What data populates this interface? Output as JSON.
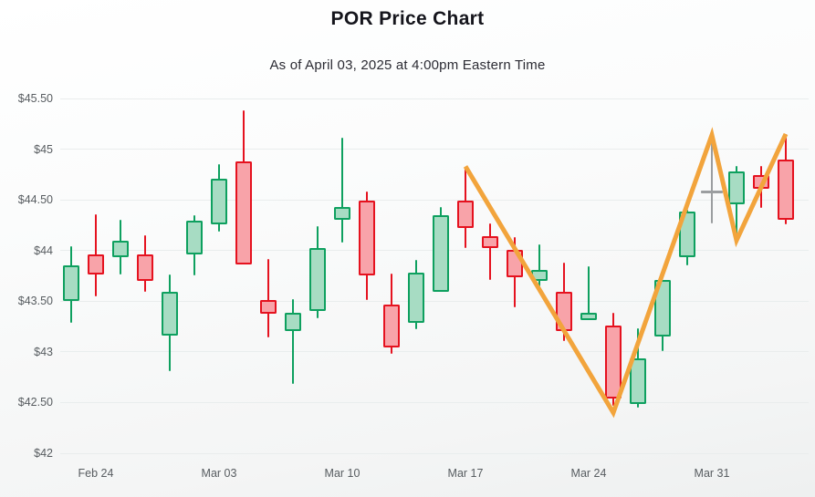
{
  "chart_data": {
    "type": "candlestick",
    "title": "POR Price Chart",
    "subtitle": "As of April 03, 2025 at 4:00pm Eastern Time",
    "legend": false,
    "grid": true,
    "y_axis": {
      "range": [
        42,
        45.5
      ],
      "ticks": [
        {
          "label": "$45.50",
          "price": 45.5
        },
        {
          "label": "$45",
          "price": 45.0
        },
        {
          "label": "$44.50",
          "price": 44.5
        },
        {
          "label": "$44",
          "price": 44.0
        },
        {
          "label": "$43.50",
          "price": 43.5
        },
        {
          "label": "$43",
          "price": 43.0
        },
        {
          "label": "$42.50",
          "price": 42.5
        },
        {
          "label": "$42",
          "price": 42.0
        }
      ]
    },
    "x_axis": {
      "ticks": [
        {
          "label": "Feb 24",
          "candle_index": 1
        },
        {
          "label": "Mar 03",
          "candle_index": 6
        },
        {
          "label": "Mar 10",
          "candle_index": 11
        },
        {
          "label": "Mar 17",
          "candle_index": 16
        },
        {
          "label": "Mar 24",
          "candle_index": 21
        },
        {
          "label": "Mar 31",
          "candle_index": 26
        }
      ]
    },
    "candles": [
      {
        "o": 43.5,
        "h": 44.04,
        "l": 43.29,
        "c": 43.85,
        "dir": "up"
      },
      {
        "o": 43.96,
        "h": 44.36,
        "l": 43.55,
        "c": 43.76,
        "dir": "down"
      },
      {
        "o": 43.93,
        "h": 44.3,
        "l": 43.76,
        "c": 44.1,
        "dir": "up"
      },
      {
        "o": 43.96,
        "h": 44.15,
        "l": 43.59,
        "c": 43.7,
        "dir": "down"
      },
      {
        "o": 43.16,
        "h": 43.76,
        "l": 42.81,
        "c": 43.59,
        "dir": "up"
      },
      {
        "o": 43.96,
        "h": 44.35,
        "l": 43.75,
        "c": 44.29,
        "dir": "up"
      },
      {
        "o": 44.26,
        "h": 44.85,
        "l": 44.19,
        "c": 44.71,
        "dir": "up"
      },
      {
        "o": 44.88,
        "h": 45.38,
        "l": 43.86,
        "c": 43.86,
        "dir": "down"
      },
      {
        "o": 43.51,
        "h": 43.92,
        "l": 43.14,
        "c": 43.38,
        "dir": "down"
      },
      {
        "o": 43.21,
        "h": 43.52,
        "l": 42.68,
        "c": 43.39,
        "dir": "up"
      },
      {
        "o": 43.4,
        "h": 44.24,
        "l": 43.33,
        "c": 44.02,
        "dir": "up"
      },
      {
        "o": 44.3,
        "h": 45.11,
        "l": 44.08,
        "c": 44.43,
        "dir": "up"
      },
      {
        "o": 44.49,
        "h": 44.58,
        "l": 43.51,
        "c": 43.75,
        "dir": "down"
      },
      {
        "o": 43.47,
        "h": 43.77,
        "l": 42.98,
        "c": 43.04,
        "dir": "down"
      },
      {
        "o": 43.29,
        "h": 43.91,
        "l": 43.22,
        "c": 43.78,
        "dir": "up"
      },
      {
        "o": 43.59,
        "h": 44.43,
        "l": 43.59,
        "c": 44.35,
        "dir": "up"
      },
      {
        "o": 44.49,
        "h": 44.82,
        "l": 44.02,
        "c": 44.22,
        "dir": "down"
      },
      {
        "o": 44.14,
        "h": 44.27,
        "l": 43.71,
        "c": 44.02,
        "dir": "down"
      },
      {
        "o": 44.01,
        "h": 44.13,
        "l": 43.44,
        "c": 43.74,
        "dir": "down"
      },
      {
        "o": 43.7,
        "h": 44.06,
        "l": 43.65,
        "c": 43.81,
        "dir": "up"
      },
      {
        "o": 43.59,
        "h": 43.88,
        "l": 43.11,
        "c": 43.21,
        "dir": "down"
      },
      {
        "o": 43.31,
        "h": 43.84,
        "l": 43.31,
        "c": 43.39,
        "dir": "up"
      },
      {
        "o": 43.26,
        "h": 43.39,
        "l": 42.47,
        "c": 42.54,
        "dir": "down"
      },
      {
        "o": 42.49,
        "h": 43.23,
        "l": 42.45,
        "c": 42.94,
        "dir": "up"
      },
      {
        "o": 43.15,
        "h": 43.71,
        "l": 43.01,
        "c": 43.71,
        "dir": "up"
      },
      {
        "o": 43.93,
        "h": 44.4,
        "l": 43.85,
        "c": 44.38,
        "dir": "up"
      },
      {
        "o": 44.58,
        "h": 45.09,
        "l": 44.27,
        "c": 44.58,
        "dir": "doji"
      },
      {
        "o": 44.46,
        "h": 44.83,
        "l": 44.17,
        "c": 44.78,
        "dir": "up"
      },
      {
        "o": 44.74,
        "h": 44.83,
        "l": 44.42,
        "c": 44.61,
        "dir": "down"
      },
      {
        "o": 44.9,
        "h": 45.15,
        "l": 44.26,
        "c": 44.3,
        "dir": "down"
      }
    ],
    "trend_line": {
      "color": "#F2A43C",
      "points": [
        {
          "candle_index": 16,
          "price": 44.83
        },
        {
          "candle_index": 22,
          "price": 42.4
        },
        {
          "candle_index": 26,
          "price": 45.14
        },
        {
          "candle_index": 27,
          "price": 44.1
        },
        {
          "candle_index": 29,
          "price": 45.15
        }
      ]
    },
    "colors": {
      "up_fill": "#A7DCC3",
      "up_border": "#0EA05F",
      "down_fill": "#F8A3A9",
      "down_border": "#E5121F",
      "doji": "#9B9EA0",
      "grid": "#E9EDED",
      "axis_text": "#575C60",
      "title_text": "#15151C",
      "subtitle_text": "#2B2B33"
    }
  }
}
